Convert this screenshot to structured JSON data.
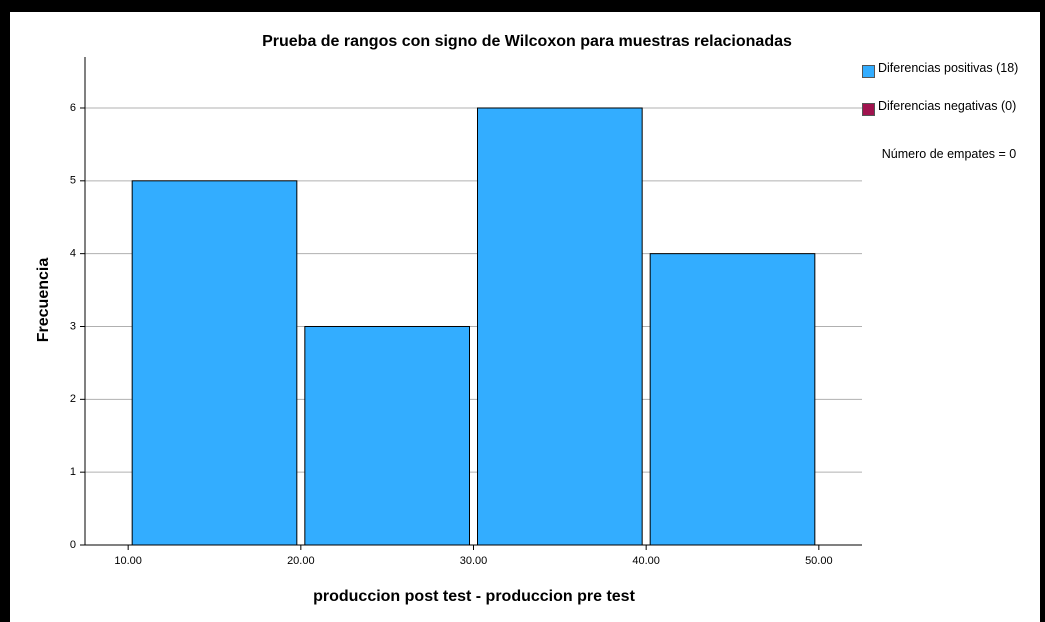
{
  "chart_data": {
    "type": "histogram",
    "title": "Prueba de rangos con signo de Wilcoxon para muestras relacionadas",
    "x_label": "produccion post test - produccion pre test",
    "y_label": "Frecuencia",
    "bins": [
      10,
      20,
      30,
      40,
      50
    ],
    "series": [
      {
        "name": "Diferencias positivas (18)",
        "color": "#33adff",
        "values": [
          5,
          3,
          6,
          4
        ]
      },
      {
        "name": "Diferencias negativas (0)",
        "color": "#a0134e",
        "values": [
          0,
          0,
          0,
          0
        ]
      }
    ],
    "annotation": "Número de empates = 0",
    "xlim": [
      7.5,
      52.5
    ],
    "ylim": [
      0,
      6.7
    ],
    "xticks": [
      {
        "value": 10,
        "label": "10.00"
      },
      {
        "value": 20,
        "label": "20.00"
      },
      {
        "value": 30,
        "label": "30.00"
      },
      {
        "value": 40,
        "label": "40.00"
      },
      {
        "value": 50,
        "label": "50.00"
      }
    ],
    "yticks": [
      0,
      1,
      2,
      3,
      4,
      5,
      6
    ],
    "grid": true,
    "legend": "right"
  }
}
